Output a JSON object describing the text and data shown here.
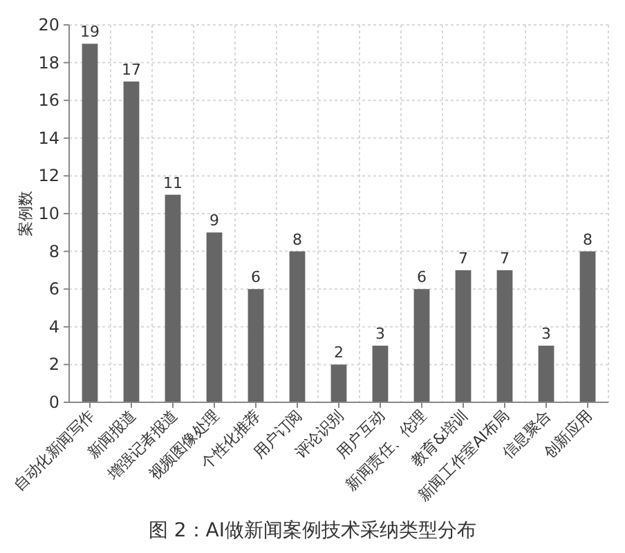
{
  "chart_data": {
    "type": "bar",
    "title": "图 2：AI做新闻案例技术采纳类型分布",
    "ylabel": "案例数",
    "categories": [
      "自动化新闻写作",
      "新闻报道",
      "增强记者报道",
      "视频图像处理",
      "个性化推荐",
      "用户订阅",
      "评论识别",
      "用户互动",
      "新闻责任、伦理",
      "教育&培训",
      "新闻工作室AI布局",
      "信息聚合",
      "创新应用"
    ],
    "values": [
      19,
      17,
      11,
      9,
      6,
      8,
      2,
      3,
      6,
      7,
      7,
      3,
      8
    ],
    "color": "#666666",
    "ylim": [
      0,
      20
    ],
    "yticks": [
      0,
      2,
      4,
      6,
      8,
      10,
      12,
      14,
      16,
      18,
      20
    ],
    "grid": true,
    "data_labels": true
  }
}
